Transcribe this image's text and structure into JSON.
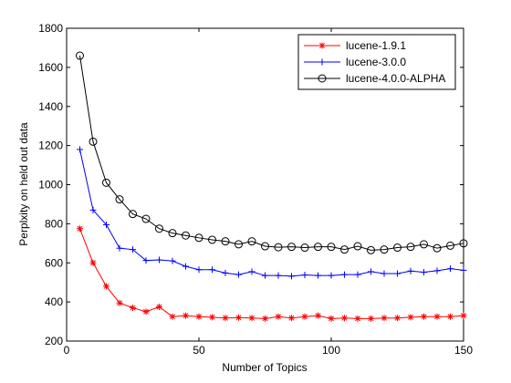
{
  "chart_data": {
    "type": "line",
    "title": "",
    "xlabel": "Number of Topics",
    "ylabel": "Perplxity on held out data",
    "xlim": [
      0,
      150
    ],
    "ylim": [
      200,
      1800
    ],
    "xticks": [
      0,
      50,
      100,
      150
    ],
    "yticks": [
      200,
      400,
      600,
      800,
      1000,
      1200,
      1400,
      1600,
      1800
    ],
    "grid": false,
    "legend_position": "top-right",
    "x": [
      5,
      10,
      15,
      20,
      25,
      30,
      35,
      40,
      45,
      50,
      55,
      60,
      65,
      70,
      75,
      80,
      85,
      90,
      95,
      100,
      105,
      110,
      115,
      120,
      125,
      130,
      135,
      140,
      145,
      150
    ],
    "series": [
      {
        "name": "lucene-1.9.1",
        "color": "#ff0000",
        "marker": "asterisk",
        "values": [
          775,
          600,
          480,
          395,
          370,
          350,
          375,
          325,
          330,
          325,
          322,
          318,
          320,
          318,
          315,
          325,
          318,
          325,
          330,
          315,
          318,
          315,
          315,
          318,
          318,
          322,
          325,
          325,
          325,
          330
        ]
      },
      {
        "name": "lucene-3.0.0",
        "color": "#0000ff",
        "marker": "plus",
        "values": [
          1180,
          870,
          795,
          675,
          668,
          612,
          615,
          610,
          582,
          565,
          565,
          548,
          540,
          555,
          535,
          535,
          532,
          538,
          535,
          535,
          540,
          540,
          555,
          545,
          545,
          558,
          552,
          560,
          570,
          562
        ]
      },
      {
        "name": "lucene-4.0.0-ALPHA",
        "color": "#000000",
        "marker": "circle",
        "values": [
          1660,
          1220,
          1010,
          925,
          850,
          825,
          775,
          752,
          740,
          728,
          718,
          710,
          695,
          710,
          685,
          680,
          682,
          678,
          682,
          682,
          668,
          685,
          665,
          668,
          678,
          682,
          695,
          675,
          688,
          700
        ]
      }
    ]
  }
}
